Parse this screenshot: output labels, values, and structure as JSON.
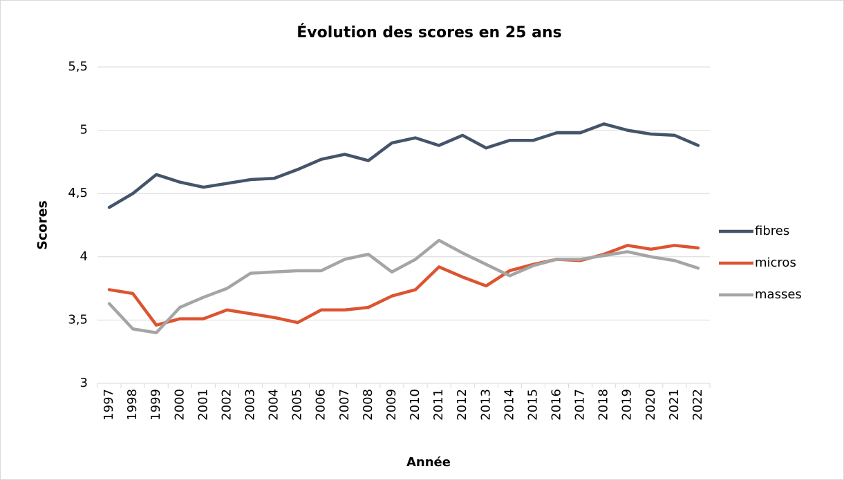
{
  "chart_data": {
    "type": "line",
    "title": "Évolution des scores en 25 ans",
    "x_label": "Année",
    "y_label": "Scores",
    "categories": [
      "1997",
      "1998",
      "1999",
      "2000",
      "2001",
      "2002",
      "2003",
      "2004",
      "2005",
      "2006",
      "2007",
      "2008",
      "2009",
      "2010",
      "2011",
      "2012",
      "2013",
      "2014",
      "2015",
      "2016",
      "2017",
      "2018",
      "2019",
      "2020",
      "2021",
      "2022"
    ],
    "series": [
      {
        "name": "fibres",
        "color": "#44546a",
        "values": [
          4.39,
          4.5,
          4.65,
          4.59,
          4.55,
          4.58,
          4.61,
          4.62,
          4.69,
          4.77,
          4.81,
          4.76,
          4.9,
          4.94,
          4.88,
          4.96,
          4.86,
          4.92,
          4.92,
          4.98,
          4.98,
          5.05,
          5.0,
          4.97,
          4.96,
          4.88
        ]
      },
      {
        "name": "micros",
        "color": "#dc5430",
        "values": [
          3.74,
          3.71,
          3.46,
          3.51,
          3.51,
          3.58,
          3.55,
          3.52,
          3.48,
          3.58,
          3.58,
          3.6,
          3.69,
          3.74,
          3.92,
          3.84,
          3.77,
          3.89,
          3.94,
          3.98,
          3.97,
          4.02,
          4.09,
          4.06,
          4.09,
          4.07
        ]
      },
      {
        "name": "masses",
        "color": "#a5a5a5",
        "values": [
          3.63,
          3.43,
          3.4,
          3.6,
          3.68,
          3.75,
          3.87,
          3.88,
          3.89,
          3.89,
          3.98,
          4.02,
          3.88,
          3.98,
          4.13,
          4.03,
          3.94,
          3.85,
          3.93,
          3.98,
          3.98,
          4.01,
          4.04,
          4.0,
          3.97,
          3.91
        ]
      }
    ],
    "ylim": [
      3,
      5.5
    ],
    "yticks": [
      3,
      {
        "value": 3.5,
        "label": "3,5"
      },
      4,
      {
        "value": 4.5,
        "label": "4,5"
      },
      5,
      {
        "value": 5.5,
        "label": "5,5"
      }
    ],
    "grid": true,
    "legend": "right"
  }
}
